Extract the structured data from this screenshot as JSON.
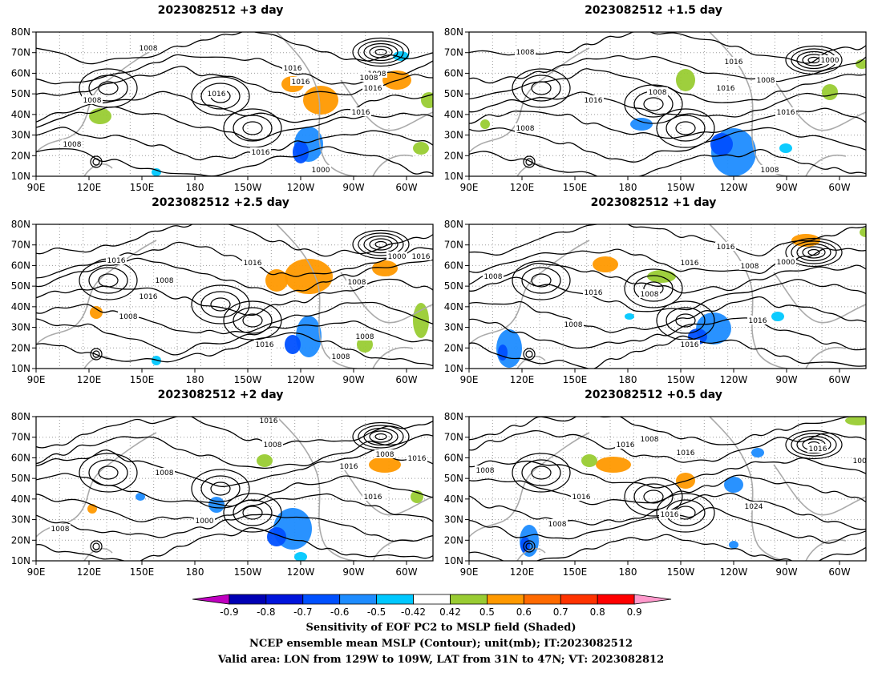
{
  "panels": [
    {
      "title": "2023082512  +3 day",
      "contour_labels": [
        "1008",
        "1008",
        "1016",
        "1016",
        "1016",
        "1008",
        "1016",
        "1000",
        "1008",
        "1016",
        "1016",
        "1008"
      ]
    },
    {
      "title": "2023082512  +1.5 day",
      "contour_labels": [
        "1008",
        "1016",
        "1016",
        "1000",
        "1008",
        "1008",
        "1016",
        "1016",
        "1008",
        "1008"
      ]
    },
    {
      "title": "2023082512  +2.5 day",
      "contour_labels": [
        "1016",
        "1008",
        "1016",
        "1016",
        "1008",
        "1000",
        "1016",
        "1008",
        "1016",
        "1008",
        "1008"
      ]
    },
    {
      "title": "2023082512  +1 day",
      "contour_labels": [
        "1016",
        "1016",
        "1008",
        "1000",
        "1008",
        "1008",
        "1016",
        "1008",
        "1016",
        "1016"
      ]
    },
    {
      "title": "2023082512  +2 day",
      "contour_labels": [
        "1016",
        "1008",
        "1008",
        "1000",
        "1016",
        "1008",
        "1016",
        "1016",
        "1008"
      ]
    },
    {
      "title": "2023082512  +0.5 day",
      "contour_labels": [
        "1016",
        "1008",
        "1016",
        "1008",
        "1016",
        "1008",
        "1016",
        "1024",
        "1016",
        "1008"
      ]
    }
  ],
  "map": {
    "lat_labels": [
      "80N",
      "70N",
      "60N",
      "50N",
      "40N",
      "30N",
      "20N",
      "10N"
    ],
    "lon_labels": [
      "90E",
      "120E",
      "150E",
      "180",
      "150W",
      "120W",
      "90W",
      "60W"
    ],
    "lon_extent": "90E to 45W",
    "lat_extent": "10N to 80N"
  },
  "colorbar": {
    "tick_labels": [
      "-0.9",
      "-0.8",
      "-0.7",
      "-0.6",
      "-0.5",
      "-0.42",
      "0.42",
      "0.5",
      "0.6",
      "0.7",
      "0.8",
      "0.9"
    ],
    "colors": [
      "#c000c0",
      "#0000b4",
      "#0014dc",
      "#0050ff",
      "#1e8cff",
      "#00c8ff",
      "#ffffff",
      "#99cc33",
      "#ff9900",
      "#ff6a00",
      "#ff3300",
      "#ff0000",
      "#ff99cc"
    ]
  },
  "caption": {
    "line1": "Sensitivity of EOF PC2 to MSLP field (Shaded)",
    "line2": "NCEP ensemble mean MSLP (Contour); unit(mb); IT:2023082512",
    "line3": "Valid area: LON from 129W to 109W, LAT from 31N to 47N; VT: 2023082812"
  }
}
